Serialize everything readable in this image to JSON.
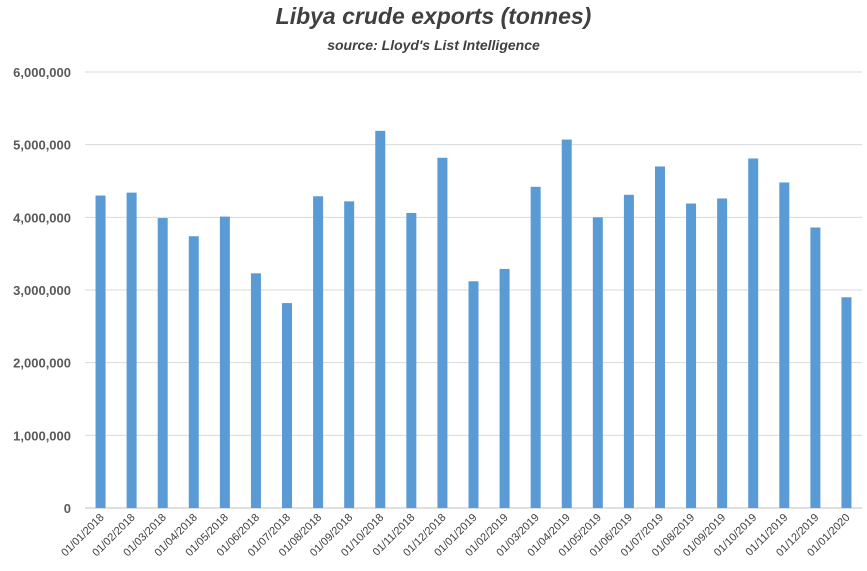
{
  "chart_data": {
    "type": "bar",
    "title": "Libya crude exports (tonnes)",
    "subtitle": "source: Lloyd's List Intelligence",
    "xlabel": "",
    "ylabel": "",
    "ylim": [
      0,
      6000000
    ],
    "yticks": [
      "0",
      "1,000,000",
      "2,000,000",
      "3,000,000",
      "4,000,000",
      "5,000,000",
      "6,000,000"
    ],
    "grid": true,
    "bar_color": "#5b9bd5",
    "categories": [
      "01/01/2018",
      "01/02/2018",
      "01/03/2018",
      "01/04/2018",
      "01/05/2018",
      "01/06/2018",
      "01/07/2018",
      "01/08/2018",
      "01/09/2018",
      "01/10/2018",
      "01/11/2018",
      "01/12/2018",
      "01/01/2019",
      "01/02/2019",
      "01/03/2019",
      "01/04/2019",
      "01/05/2019",
      "01/06/2019",
      "01/07/2019",
      "01/08/2019",
      "01/09/2019",
      "01/10/2019",
      "01/11/2019",
      "01/12/2019",
      "01/01/2020"
    ],
    "values": [
      4300000,
      4340000,
      3990000,
      3740000,
      4010000,
      3230000,
      2820000,
      4290000,
      4220000,
      5190000,
      4060000,
      4820000,
      3120000,
      3290000,
      4420000,
      5070000,
      4000000,
      4310000,
      4700000,
      4190000,
      4260000,
      4810000,
      4480000,
      3860000,
      2900000
    ]
  }
}
